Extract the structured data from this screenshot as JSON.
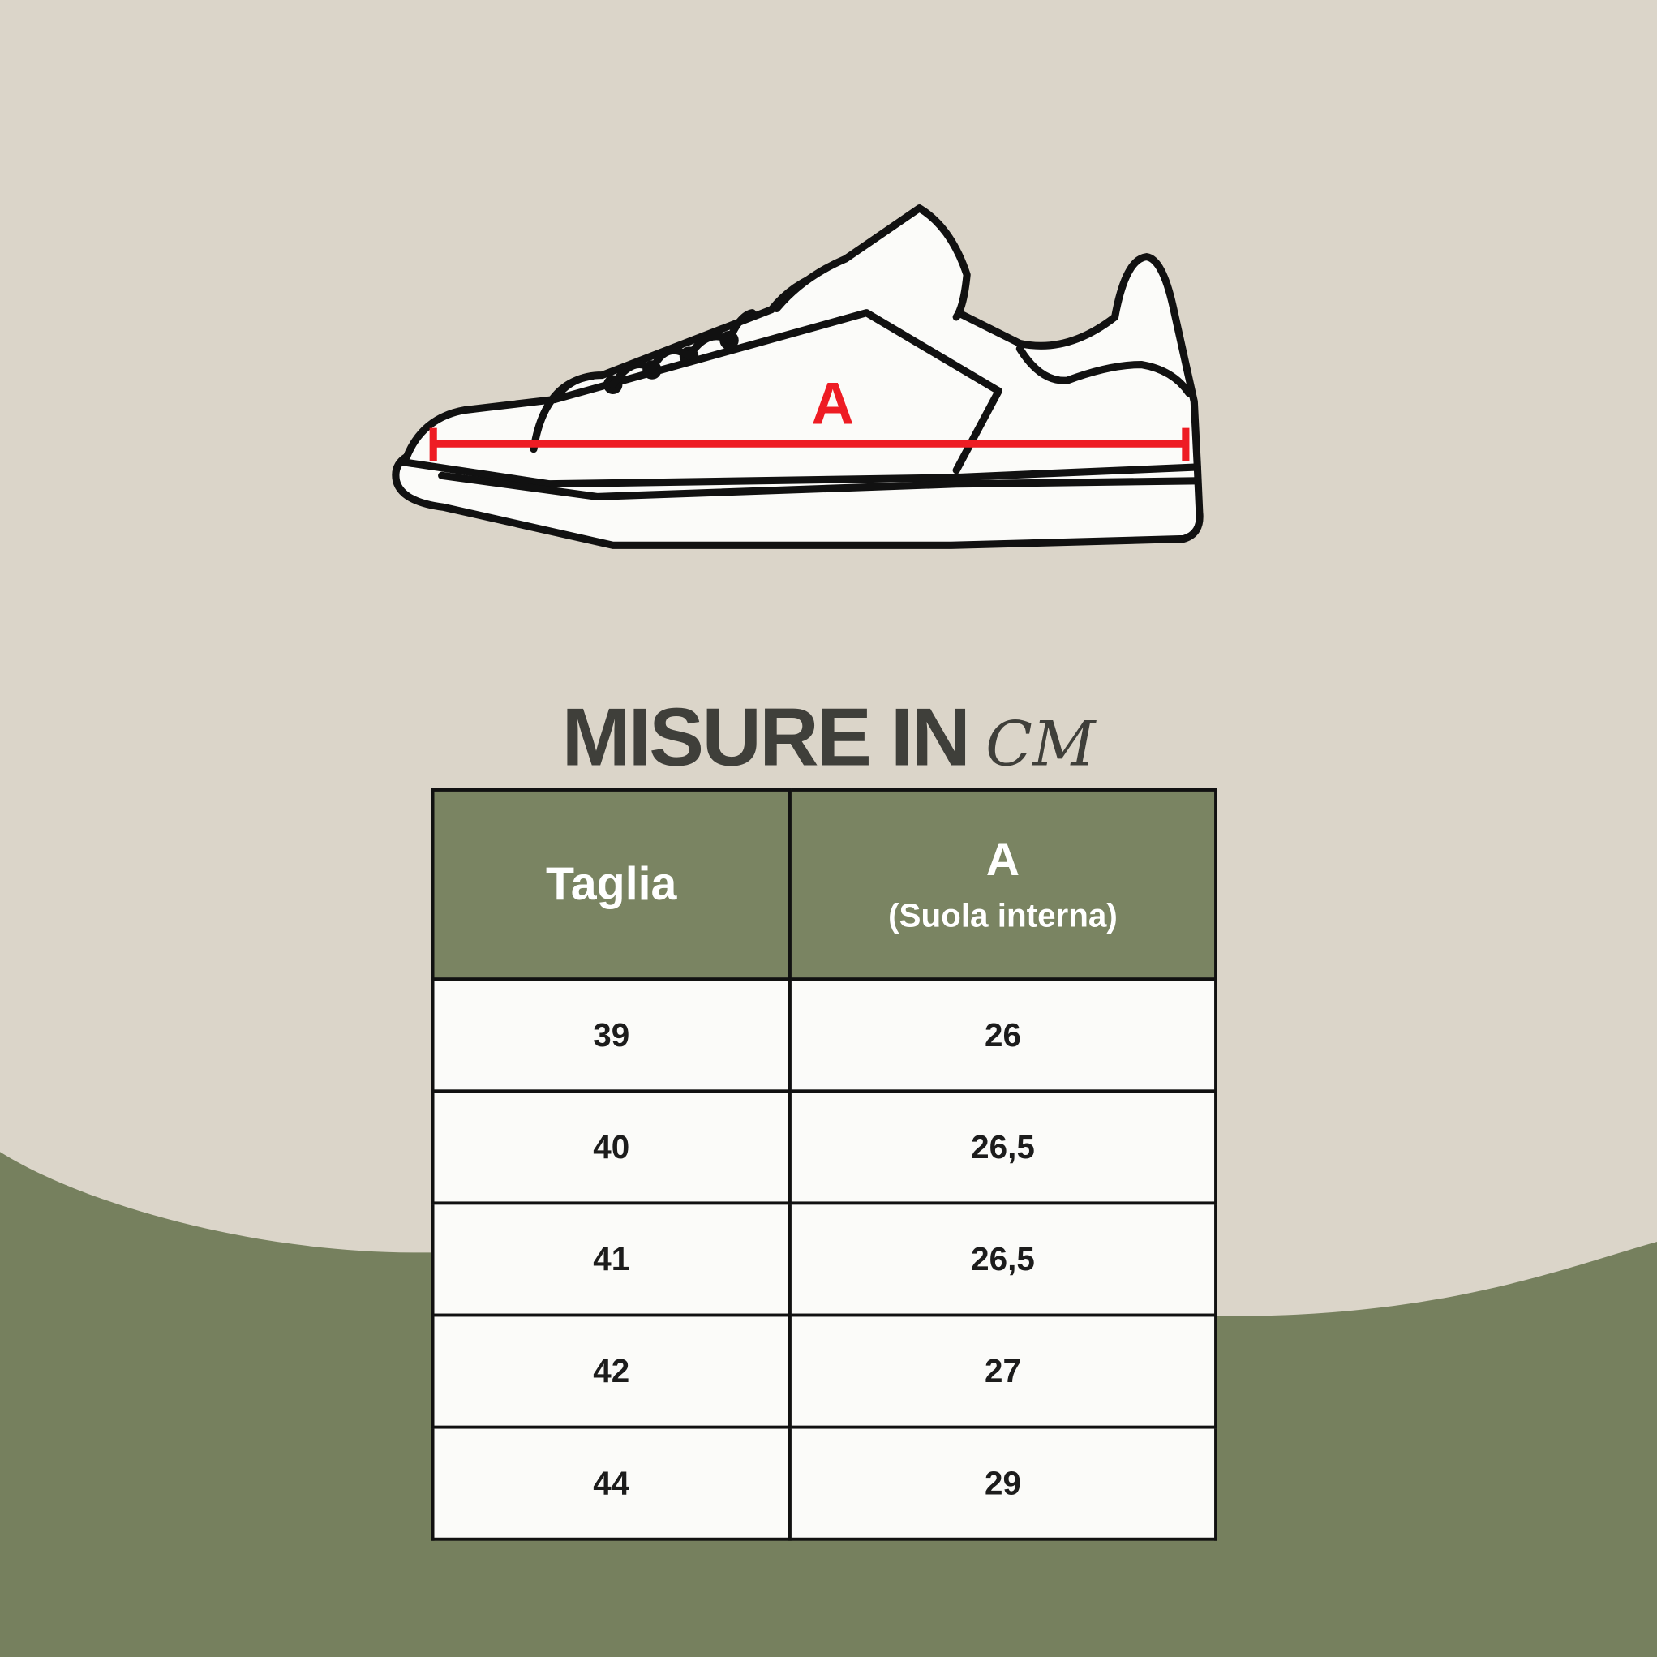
{
  "colors": {
    "background": "#dbd5c9",
    "wave": "#76805e",
    "header": "#7a8462",
    "measure": "#ee1c24"
  },
  "diagram": {
    "measure_label": "A"
  },
  "title": {
    "main": "MISURE IN",
    "unit": "CM"
  },
  "table": {
    "headers": [
      {
        "label": "Taglia"
      },
      {
        "label": "A",
        "sub": "(Suola interna)"
      }
    ],
    "rows": [
      [
        "39",
        "26"
      ],
      [
        "40",
        "26,5"
      ],
      [
        "41",
        "26,5"
      ],
      [
        "42",
        "27"
      ],
      [
        "44",
        "29"
      ]
    ]
  }
}
